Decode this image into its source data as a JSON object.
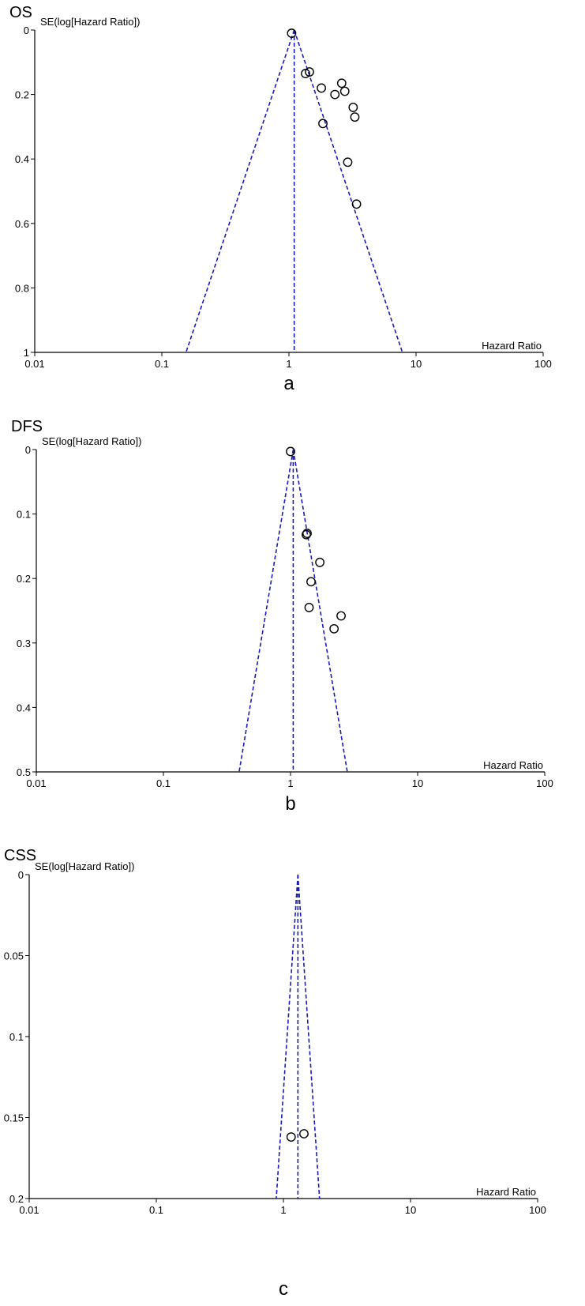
{
  "chart_data": [
    {
      "type": "scatter",
      "panel_label": "a",
      "title": "OS",
      "ylabel": "SE(log[Hazard Ratio])",
      "xlabel": "Hazard Ratio",
      "x_scale": "log",
      "xlim": [
        0.01,
        100
      ],
      "ylim": [
        0,
        1
      ],
      "y_inverted": true,
      "x_ticks": [
        "0.01",
        "0.1",
        "1",
        "10",
        "100"
      ],
      "y_ticks": [
        "0",
        "0.2",
        "0.4",
        "0.6",
        "0.8",
        "1"
      ],
      "pooled_hr": 1.1,
      "funnel_color": "#1a1ab8",
      "points": [
        {
          "x": 1.05,
          "y": 0.01
        },
        {
          "x": 1.35,
          "y": 0.135
        },
        {
          "x": 1.45,
          "y": 0.13
        },
        {
          "x": 1.8,
          "y": 0.18
        },
        {
          "x": 2.3,
          "y": 0.2
        },
        {
          "x": 2.6,
          "y": 0.165
        },
        {
          "x": 2.75,
          "y": 0.19
        },
        {
          "x": 3.2,
          "y": 0.24
        },
        {
          "x": 3.3,
          "y": 0.27
        },
        {
          "x": 1.85,
          "y": 0.29
        },
        {
          "x": 2.9,
          "y": 0.41
        },
        {
          "x": 3.4,
          "y": 0.54
        }
      ]
    },
    {
      "type": "scatter",
      "panel_label": "b",
      "title": "DFS",
      "ylabel": "SE(log[Hazard Ratio])",
      "xlabel": "Hazard Ratio",
      "x_scale": "log",
      "xlim": [
        0.01,
        100
      ],
      "ylim": [
        0,
        0.5
      ],
      "y_inverted": true,
      "x_ticks": [
        "0.01",
        "0.1",
        "1",
        "10",
        "100"
      ],
      "y_ticks": [
        "0",
        "0.1",
        "0.2",
        "0.3",
        "0.4",
        "0.5"
      ],
      "pooled_hr": 1.05,
      "funnel_color": "#1a1ab8",
      "points": [
        {
          "x": 1.0,
          "y": 0.003
        },
        {
          "x": 1.35,
          "y": 0.13
        },
        {
          "x": 1.33,
          "y": 0.132
        },
        {
          "x": 1.7,
          "y": 0.175
        },
        {
          "x": 1.45,
          "y": 0.205
        },
        {
          "x": 1.4,
          "y": 0.245
        },
        {
          "x": 2.5,
          "y": 0.258
        },
        {
          "x": 2.2,
          "y": 0.278
        }
      ]
    },
    {
      "type": "scatter",
      "panel_label": "c",
      "title": "CSS",
      "ylabel": "SE(log[Hazard Ratio])",
      "xlabel": "Hazard Ratio",
      "x_scale": "log",
      "xlim": [
        0.01,
        100
      ],
      "ylim": [
        0,
        0.2
      ],
      "y_inverted": true,
      "x_ticks": [
        "0.01",
        "0.1",
        "1",
        "10",
        "100"
      ],
      "y_ticks": [
        "0",
        "0.05",
        "0.1",
        "0.15",
        "0.2"
      ],
      "pooled_hr": 1.3,
      "funnel_color": "#1a1ab8",
      "points": [
        {
          "x": 1.15,
          "y": 0.162
        },
        {
          "x": 1.45,
          "y": 0.16
        }
      ]
    }
  ]
}
